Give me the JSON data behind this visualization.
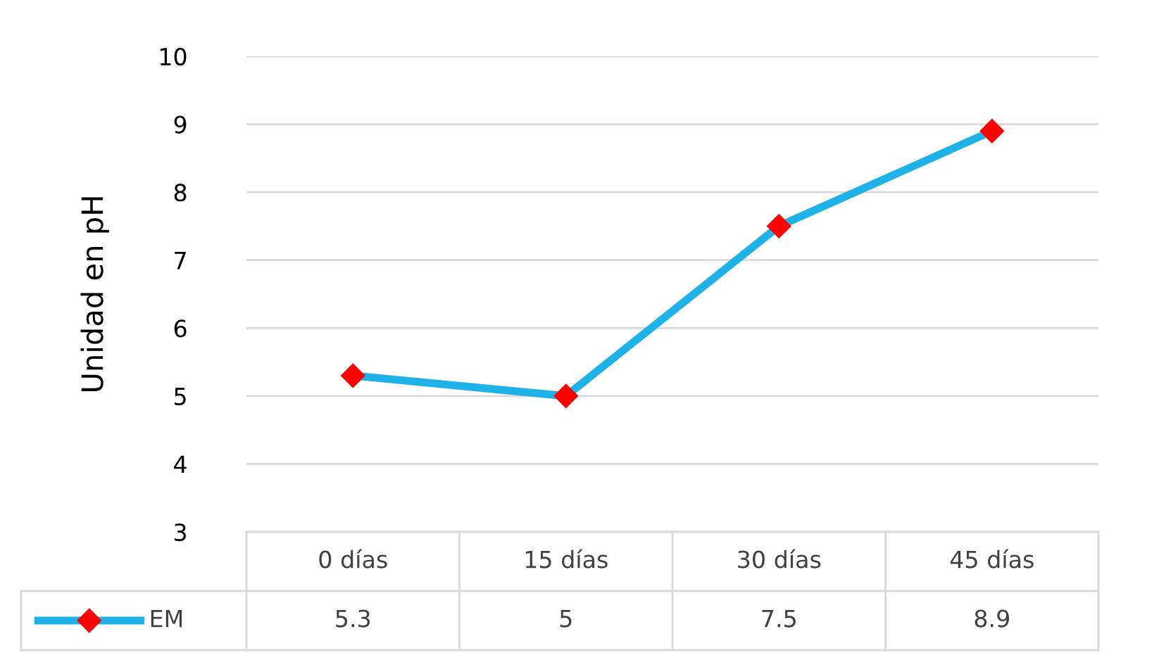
{
  "chart_data": {
    "type": "line",
    "ylabel": "Unidad en pH",
    "categories": [
      "0 días",
      "15 días",
      "30 días",
      "45 días"
    ],
    "series": [
      {
        "name": "EM",
        "color": "#1fb2e8",
        "colors": [
          "#ff0000",
          "#ff0000",
          "#ff0000",
          "#ff0000"
        ],
        "values": [
          5.3,
          5,
          7.5,
          8.9
        ]
      }
    ],
    "ylim": [
      3,
      10
    ],
    "yticks": [
      3,
      4,
      5,
      6,
      7,
      8,
      9,
      10
    ],
    "grid": "y",
    "marker": "diamond",
    "line_style": "solid",
    "data_labels": true,
    "legend": "bottom"
  }
}
